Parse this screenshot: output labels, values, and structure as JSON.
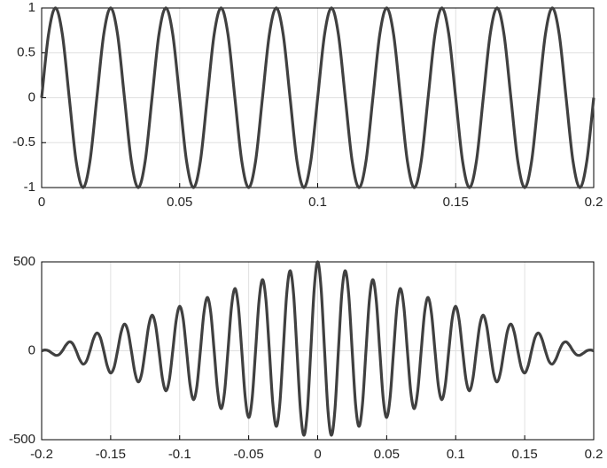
{
  "chart_data": [
    {
      "type": "line",
      "color": "#404040",
      "grid": true,
      "xlim": [
        0,
        0.2
      ],
      "xticks": [
        0,
        0.05,
        0.1,
        0.15,
        0.2
      ],
      "ylim": [
        -1,
        1
      ],
      "yticks": [
        -1,
        -0.5,
        0,
        0.5,
        1
      ],
      "x": [
        0,
        0.0025,
        0.005,
        0.0075,
        0.01,
        0.0125,
        0.015,
        0.0175,
        0.02,
        0.0225,
        0.025,
        0.0275,
        0.03,
        0.0325,
        0.035,
        0.0375,
        0.04,
        0.0425,
        0.045,
        0.0475,
        0.05,
        0.0525,
        0.055,
        0.0575,
        0.06,
        0.0625,
        0.065,
        0.0675,
        0.07,
        0.0725,
        0.075,
        0.0775,
        0.08,
        0.0825,
        0.085,
        0.0875,
        0.09,
        0.0925,
        0.095,
        0.0975,
        0.1,
        0.1025,
        0.105,
        0.1075,
        0.11,
        0.1125,
        0.115,
        0.1175,
        0.12,
        0.1225,
        0.125,
        0.1275,
        0.13,
        0.1325,
        0.135,
        0.1375,
        0.14,
        0.1425,
        0.145,
        0.1475,
        0.15,
        0.1525,
        0.155,
        0.1575,
        0.16,
        0.1625,
        0.165,
        0.1675,
        0.17,
        0.1725,
        0.175,
        0.1775,
        0.18,
        0.1825,
        0.185,
        0.1875,
        0.19,
        0.1925,
        0.195,
        0.1975,
        0.2
      ],
      "values": [
        0,
        0.707,
        1,
        0.707,
        0,
        -0.707,
        -1,
        -0.707,
        0,
        0.707,
        1,
        0.707,
        0,
        -0.707,
        -1,
        -0.707,
        0,
        0.707,
        1,
        0.707,
        0,
        -0.707,
        -1,
        -0.707,
        0,
        0.707,
        1,
        0.707,
        0,
        -0.707,
        -1,
        -0.707,
        0,
        0.707,
        1,
        0.707,
        0,
        -0.707,
        -1,
        -0.707,
        0,
        0.707,
        1,
        0.707,
        0,
        -0.707,
        -1,
        -0.707,
        0,
        0.707,
        1,
        0.707,
        0,
        -0.707,
        -1,
        -0.707,
        0,
        0.707,
        1,
        0.707,
        0,
        -0.707,
        -1,
        -0.707,
        0,
        0.707,
        1,
        0.707,
        0,
        -0.707,
        -1,
        -0.707,
        0,
        0.707,
        1,
        0.707,
        0,
        -0.707,
        -1,
        -0.707,
        0
      ]
    },
    {
      "type": "line",
      "color": "#404040",
      "grid": true,
      "xlim": [
        -0.2,
        0.2
      ],
      "xticks": [
        -0.2,
        -0.15,
        -0.1,
        -0.05,
        0,
        0.05,
        0.1,
        0.15,
        0.2
      ],
      "ylim": [
        -500,
        500
      ],
      "yticks": [
        -500,
        0,
        500
      ],
      "x": [
        -0.2,
        -0.1975,
        -0.195,
        -0.1925,
        -0.19,
        -0.1875,
        -0.185,
        -0.1825,
        -0.18,
        -0.1775,
        -0.175,
        -0.1725,
        -0.17,
        -0.1675,
        -0.165,
        -0.1625,
        -0.16,
        -0.1575,
        -0.155,
        -0.1525,
        -0.15,
        -0.1475,
        -0.145,
        -0.1425,
        -0.14,
        -0.1375,
        -0.135,
        -0.1325,
        -0.13,
        -0.1275,
        -0.125,
        -0.1225,
        -0.12,
        -0.1175,
        -0.115,
        -0.1125,
        -0.11,
        -0.1075,
        -0.105,
        -0.1025,
        -0.1,
        -0.0975,
        -0.095,
        -0.0925,
        -0.09,
        -0.0875,
        -0.085,
        -0.0825,
        -0.08,
        -0.0775,
        -0.075,
        -0.0725,
        -0.07,
        -0.0675,
        -0.065,
        -0.0625,
        -0.06,
        -0.0575,
        -0.055,
        -0.0525,
        -0.05,
        -0.0475,
        -0.045,
        -0.0425,
        -0.04,
        -0.0375,
        -0.035,
        -0.0325,
        -0.03,
        -0.0275,
        -0.025,
        -0.0225,
        -0.02,
        -0.0175,
        -0.015,
        -0.0125,
        -0.01,
        -0.0075,
        -0.005,
        -0.0025,
        0,
        0.0025,
        0.005,
        0.0075,
        0.01,
        0.0125,
        0.015,
        0.0175,
        0.02,
        0.0225,
        0.025,
        0.0275,
        0.03,
        0.0325,
        0.035,
        0.0375,
        0.04,
        0.0425,
        0.045,
        0.0475,
        0.05,
        0.0525,
        0.055,
        0.0575,
        0.06,
        0.0625,
        0.065,
        0.0675,
        0.07,
        0.0725,
        0.075,
        0.0775,
        0.08,
        0.0825,
        0.085,
        0.0875,
        0.09,
        0.0925,
        0.095,
        0.0975,
        0.1,
        0.1025,
        0.105,
        0.1075,
        0.11,
        0.1125,
        0.115,
        0.1175,
        0.12,
        0.1225,
        0.125,
        0.1275,
        0.13,
        0.1325,
        0.135,
        0.1375,
        0.14,
        0.1425,
        0.145,
        0.1475,
        0.15,
        0.1525,
        0.155,
        0.1575,
        0.16,
        0.1625,
        0.165,
        0.1675,
        0.17,
        0.1725,
        0.175,
        0.1775,
        0.18,
        0.1825,
        0.185,
        0.1875,
        0.19,
        0.1925,
        0.195,
        0.1975,
        0.2
      ],
      "values": [
        0,
        4.4,
        0,
        -13.3,
        -25,
        -22.1,
        0,
        30.9,
        50,
        39.8,
        0,
        -48.6,
        -75,
        -57.5,
        0,
        66.3,
        100,
        75.1,
        0,
        -84,
        -125,
        -92.8,
        0,
        101.6,
        150,
        110.5,
        0,
        -119.3,
        -175,
        -128.2,
        0,
        137,
        200,
        145.8,
        0,
        -154.7,
        -225,
        -163.5,
        0,
        172.4,
        250,
        181.2,
        0,
        -190,
        -275,
        -198.9,
        0,
        207.7,
        300,
        216.6,
        0,
        -225.4,
        -325,
        -234.2,
        0,
        243.1,
        350,
        251.9,
        0,
        -260.7,
        -375,
        -269.6,
        0,
        278.4,
        400,
        287.3,
        0,
        -296.1,
        -425,
        -304.9,
        0,
        313.8,
        450,
        322.6,
        0,
        -331.5,
        -475,
        -340.3,
        0,
        349.1,
        500,
        349.1,
        0,
        -340.3,
        -475,
        -331.5,
        0,
        322.6,
        450,
        313.8,
        0,
        -304.9,
        -425,
        -296.1,
        0,
        287.3,
        400,
        278.4,
        0,
        -269.6,
        -375,
        -260.7,
        0,
        251.9,
        350,
        243.1,
        0,
        -234.2,
        -325,
        -225.4,
        0,
        216.6,
        300,
        207.7,
        0,
        -198.9,
        -275,
        -190,
        0,
        181.2,
        250,
        172.4,
        0,
        -163.5,
        -225,
        -154.7,
        0,
        145.8,
        200,
        137,
        0,
        -128.2,
        -175,
        -119.3,
        0,
        110.5,
        150,
        101.6,
        0,
        -92.8,
        -125,
        -84,
        0,
        75.1,
        100,
        66.3,
        0,
        -57.5,
        -75,
        -48.6,
        0,
        39.8,
        50,
        30.9,
        0,
        -22.1,
        -25,
        -13.3,
        0,
        4.4,
        0
      ]
    }
  ]
}
